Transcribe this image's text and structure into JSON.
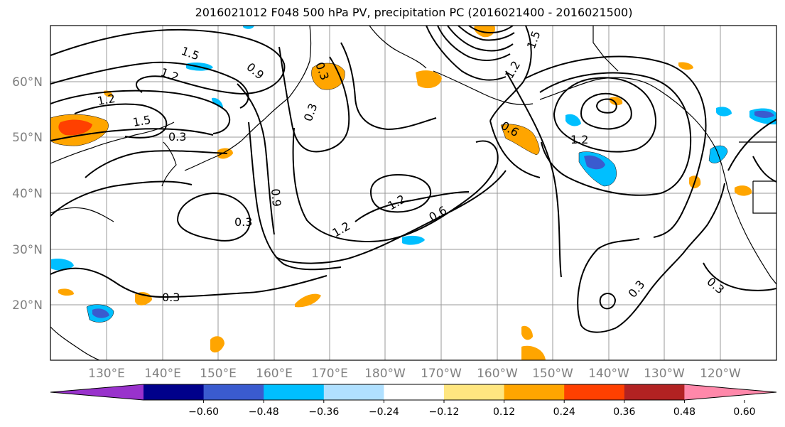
{
  "title": "2016021012 F048 500 hPa PV, precipitation PC (2016021400 - 2016021500)",
  "map": {
    "lat_labels": [
      "60°N",
      "50°N",
      "40°N",
      "30°N",
      "20°N"
    ],
    "lon_labels": [
      "130°E",
      "140°E",
      "150°E",
      "160°E",
      "170°E",
      "180°W",
      "170°W",
      "160°W",
      "150°W",
      "140°W",
      "130°W",
      "120°W"
    ],
    "contour_labels": [
      {
        "text": "1.5"
      },
      {
        "text": "1.2"
      },
      {
        "text": "1.2"
      },
      {
        "text": "1.5"
      },
      {
        "text": "0.3"
      },
      {
        "text": "0.9"
      },
      {
        "text": "0.3"
      },
      {
        "text": "0.3"
      },
      {
        "text": "0.9"
      },
      {
        "text": "0.3"
      },
      {
        "text": "1.2"
      },
      {
        "text": "1.2"
      },
      {
        "text": "0.6"
      },
      {
        "text": "0.3"
      },
      {
        "text": "0.6"
      },
      {
        "text": "1.2"
      },
      {
        "text": "1.2"
      },
      {
        "text": "1.5"
      },
      {
        "text": "0.3"
      },
      {
        "text": "0.3"
      }
    ]
  },
  "colorbar": {
    "colors": [
      "#9932cc",
      "#00008b",
      "#3a5bcf",
      "#00bfff",
      "#b0e0ff",
      "#ffffff",
      "#ffe680",
      "#ffa500",
      "#ff4000",
      "#b22222",
      "#ff88aa"
    ],
    "tick_labels": [
      "−0.60",
      "−0.48",
      "−0.36",
      "−0.24",
      "−0.12",
      "0.12",
      "0.24",
      "0.36",
      "0.48",
      "0.60"
    ]
  }
}
